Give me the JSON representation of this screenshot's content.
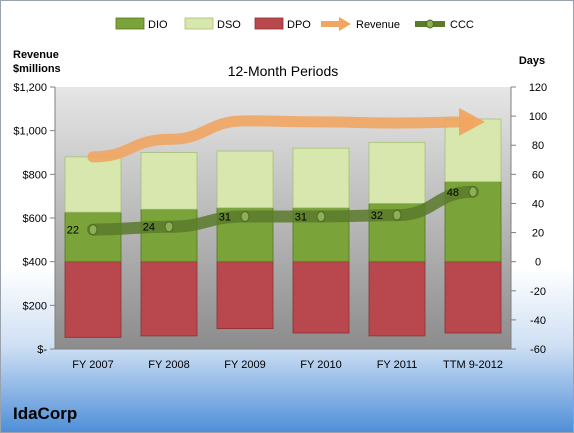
{
  "chart_data": {
    "type": "combo",
    "title": "12-Month Periods",
    "company": "IdaCorp",
    "categories": [
      "FY 2007",
      "FY 2008",
      "FY 2009",
      "FY 2010",
      "FY 2011",
      "TTM 9-2012"
    ],
    "left_axis": {
      "label_line1": "Revenue",
      "label_line2": "$millions",
      "ylim": [
        0,
        1200
      ],
      "ticks": [
        0,
        200,
        400,
        600,
        800,
        1000,
        1200
      ],
      "tick_labels": [
        "$-",
        "$200",
        "$400",
        "$600",
        "$800",
        "$1,000",
        "$1,200"
      ]
    },
    "right_axis": {
      "label": "Days",
      "ylim": [
        -60,
        120
      ],
      "ticks": [
        -60,
        -40,
        -20,
        0,
        20,
        40,
        60,
        80,
        100,
        120
      ],
      "tick_labels": [
        "-60",
        "-40",
        "-20",
        "0",
        "20",
        "40",
        "60",
        "80",
        "100",
        "120"
      ]
    },
    "series": [
      {
        "name": "DIO",
        "type": "stacked-bar",
        "axis": "right",
        "color": "#7aa33a",
        "values": [
          34,
          36,
          37,
          37,
          40,
          55
        ]
      },
      {
        "name": "DSO",
        "type": "stacked-bar",
        "axis": "right",
        "color": "#d7e7ad",
        "values": [
          38,
          39,
          39,
          41,
          42,
          43
        ]
      },
      {
        "name": "DPO",
        "type": "stacked-bar-negative",
        "axis": "right",
        "color": "#b8484d",
        "values": [
          -52,
          -51,
          -46,
          -49,
          -51,
          -49
        ]
      },
      {
        "name": "Revenue",
        "type": "line",
        "axis": "left",
        "color": "#f0a561",
        "values": [
          880,
          960,
          1045,
          1040,
          1035,
          1040
        ]
      },
      {
        "name": "CCC",
        "type": "line",
        "axis": "right",
        "color": "#5b7a2a",
        "values": [
          22,
          24,
          31,
          31,
          32,
          48
        ]
      }
    ],
    "data_labels": [
      "22",
      "24",
      "31",
      "31",
      "32",
      "48"
    ],
    "legend": "top",
    "grid": false
  }
}
